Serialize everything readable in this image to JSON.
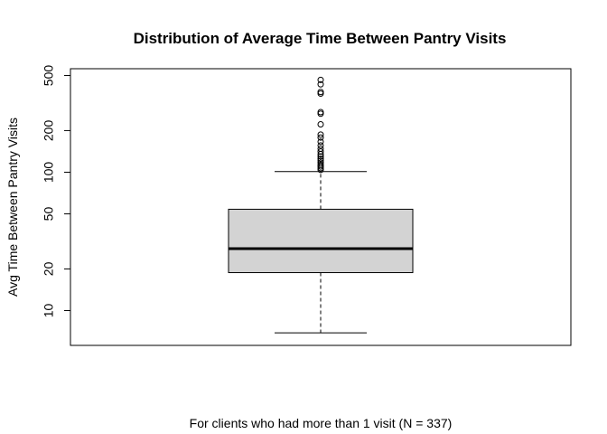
{
  "chart_data": {
    "type": "boxplot",
    "title": "Distribution of Average Time Between Pantry Visits",
    "xlabel": "For clients who had more than 1 visit (N = 337)",
    "ylabel": "Avg Time Between Pantry Visits",
    "y_scale": "log",
    "ylim": [
      5.6,
      560
    ],
    "y_ticks": [
      {
        "value": 10,
        "label": "10"
      },
      {
        "value": 20,
        "label": "20"
      },
      {
        "value": 50,
        "label": "50"
      },
      {
        "value": 100,
        "label": "100"
      },
      {
        "value": 200,
        "label": "200"
      },
      {
        "value": 500,
        "label": "500"
      }
    ],
    "box": {
      "whisker_low": 6.9,
      "q1": 18.8,
      "median": 28,
      "q3": 54,
      "whisker_high": 101,
      "fill": "#d3d3d3"
    },
    "outliers": [
      104,
      107,
      110,
      113,
      117,
      121,
      125,
      130,
      135,
      141,
      148,
      156,
      166,
      178,
      187,
      222,
      265,
      272,
      370,
      380,
      432,
      465
    ],
    "grid": false,
    "legend": "none"
  }
}
